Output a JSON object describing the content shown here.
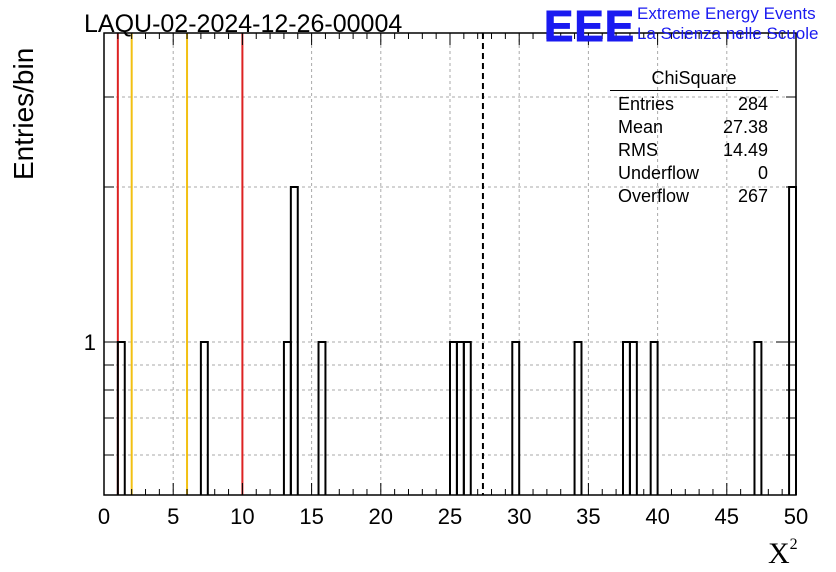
{
  "title": "LAQU-02-2024-12-26-00004",
  "logo": {
    "mark": "EEE",
    "line1": "Extreme Energy Events",
    "line2": "La Scienza nelle Scuole",
    "color": "#1a1af0"
  },
  "stats_box": {
    "title": "ChiSquare",
    "rows": [
      {
        "label": "Entries",
        "value": "284"
      },
      {
        "label": "Mean",
        "value": "27.38"
      },
      {
        "label": "RMS",
        "value": "14.49"
      },
      {
        "label": "Underflow",
        "value": "0"
      },
      {
        "label": "Overflow",
        "value": "267"
      }
    ]
  },
  "chart_data": {
    "type": "bar",
    "ylabel": "Entries/bin",
    "xlabel": "X",
    "xlabel_superscript": "2",
    "xlim": [
      0,
      50
    ],
    "x_ticks": [
      "0",
      "5",
      "10",
      "15",
      "20",
      "25",
      "30",
      "35",
      "40",
      "45",
      "50"
    ],
    "y_scale": "log",
    "y_ticks": [
      "1"
    ],
    "grid": true,
    "bin_width": 0.5,
    "bins": [
      {
        "x": 1.0,
        "count": 1
      },
      {
        "x": 7.0,
        "count": 1
      },
      {
        "x": 13.0,
        "count": 1
      },
      {
        "x": 13.5,
        "count": 2
      },
      {
        "x": 15.5,
        "count": 1
      },
      {
        "x": 25.0,
        "count": 1
      },
      {
        "x": 25.5,
        "count": 1
      },
      {
        "x": 26.0,
        "count": 1
      },
      {
        "x": 29.5,
        "count": 1
      },
      {
        "x": 34.0,
        "count": 1
      },
      {
        "x": 37.5,
        "count": 1
      },
      {
        "x": 38.0,
        "count": 1
      },
      {
        "x": 39.5,
        "count": 1
      },
      {
        "x": 47.0,
        "count": 1
      },
      {
        "x": 49.5,
        "count": 2
      }
    ],
    "reference_lines": [
      {
        "x": 1.0,
        "color": "#dd2222",
        "style": "solid"
      },
      {
        "x": 2.0,
        "color": "#f2c012",
        "style": "solid"
      },
      {
        "x": 6.0,
        "color": "#f2c012",
        "style": "solid"
      },
      {
        "x": 10.0,
        "color": "#dd2222",
        "style": "solid"
      },
      {
        "x": 27.38,
        "color": "#000000",
        "style": "dashed"
      }
    ],
    "colors": {
      "hist": "#000000",
      "grid": "#aaaaaa"
    }
  }
}
